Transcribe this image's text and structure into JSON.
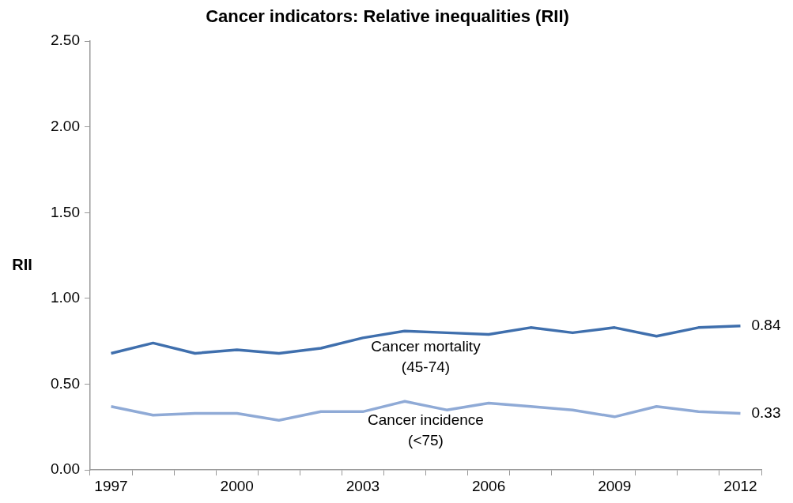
{
  "chart_data": {
    "type": "line",
    "title": "Cancer indicators: Relative inequalities (RII)",
    "ylabel": "RII",
    "categories": [
      "1997",
      null,
      null,
      "2000",
      null,
      null,
      "2003",
      null,
      null,
      "2006",
      null,
      null,
      "2009",
      null,
      null,
      "2012"
    ],
    "ylim": [
      0,
      2.5
    ],
    "yticks": [
      {
        "value": 0,
        "label": "0.00"
      },
      {
        "value": 0.5,
        "label": "0.50"
      },
      {
        "value": 1,
        "label": "1.00"
      },
      {
        "value": 1.5,
        "label": "1.50"
      },
      {
        "value": 2,
        "label": "2.00"
      },
      {
        "value": 2.5,
        "label": "2.50"
      }
    ],
    "legend": false,
    "marker": "none",
    "line_style": "solid",
    "series": [
      {
        "name": "Cancer mortality (45-74)",
        "color": "#3f6fad",
        "values": [
          0.68,
          0.74,
          0.68,
          0.7,
          0.68,
          0.71,
          0.77,
          0.81,
          0.8,
          0.79,
          0.83,
          0.8,
          0.83,
          0.78,
          0.83,
          0.84
        ],
        "value_labels": [
          null,
          null,
          null,
          null,
          null,
          null,
          null,
          null,
          null,
          null,
          null,
          null,
          null,
          null,
          null,
          "0.84"
        ]
      },
      {
        "name": "Cancer incidence (<75)",
        "color": "#8faad6",
        "values": [
          0.37,
          0.32,
          0.33,
          0.33,
          0.29,
          0.34,
          0.34,
          0.4,
          0.35,
          0.39,
          0.37,
          0.35,
          0.31,
          0.37,
          0.34,
          0.33
        ],
        "value_labels": [
          null,
          null,
          null,
          null,
          null,
          null,
          null,
          null,
          null,
          null,
          null,
          null,
          null,
          null,
          null,
          "0.33"
        ]
      }
    ]
  }
}
